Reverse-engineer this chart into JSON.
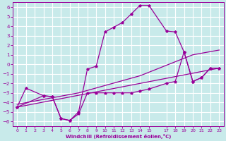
{
  "xlabel": "Windchill (Refroidissement éolien,°C)",
  "bg_color": "#c8eaea",
  "grid_color": "#b8d8d8",
  "line_color": "#990099",
  "ylim": [
    -6.5,
    6.5
  ],
  "xlim": [
    -0.5,
    23.5
  ],
  "yticks": [
    -6,
    -5,
    -4,
    -3,
    -2,
    -1,
    0,
    1,
    2,
    3,
    4,
    5,
    6
  ],
  "xticks": [
    0,
    1,
    2,
    3,
    4,
    5,
    6,
    7,
    8,
    9,
    10,
    11,
    12,
    13,
    14,
    15,
    17,
    18,
    19,
    20,
    21,
    22,
    23
  ],
  "line1_x": [
    0,
    1,
    3,
    4,
    5,
    6,
    7,
    8,
    9,
    10,
    11,
    12,
    13,
    14,
    15,
    17,
    18,
    19,
    20,
    21,
    22,
    23
  ],
  "line1_y": [
    -4.5,
    -2.5,
    -3.3,
    -3.4,
    -5.7,
    -5.9,
    -5.0,
    -0.5,
    -0.2,
    3.4,
    3.9,
    4.4,
    5.3,
    6.2,
    6.2,
    3.5,
    3.4,
    1.3,
    -1.8,
    -1.4,
    -0.4,
    -0.4
  ],
  "line2_x": [
    0,
    3,
    4,
    5,
    6,
    7,
    8,
    9,
    10,
    11,
    12,
    13,
    14,
    15,
    17,
    18,
    19,
    20,
    21,
    22,
    23
  ],
  "line2_y": [
    -4.5,
    -3.3,
    -3.4,
    -5.7,
    -5.9,
    -5.2,
    -3.0,
    -3.0,
    -3.0,
    -3.0,
    -3.0,
    -3.0,
    -2.8,
    -2.6,
    -2.0,
    -1.8,
    1.3,
    -1.8,
    -1.4,
    -0.4,
    -0.4
  ],
  "line3_x": [
    0,
    23
  ],
  "line3_y": [
    -4.5,
    -0.4
  ],
  "line4_x": [
    0,
    7,
    14,
    20,
    23
  ],
  "line4_y": [
    -4.2,
    -3.0,
    -1.2,
    1.0,
    1.5
  ]
}
